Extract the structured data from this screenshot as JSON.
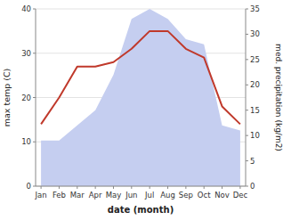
{
  "chart_data": {
    "type": "line",
    "categories": [
      "Jan",
      "Feb",
      "Mar",
      "Apr",
      "May",
      "Jun",
      "Jul",
      "Aug",
      "Sep",
      "Oct",
      "Nov",
      "Dec"
    ],
    "xlabel": "date (month)",
    "ylabel": "max temp (C)",
    "y2label": "med. precipitation (kg/m2)",
    "series": [
      {
        "type": "area",
        "axis": "y2",
        "color": "#c5cef0",
        "values": [
          9,
          9,
          12,
          15,
          22,
          33,
          35,
          33,
          29,
          28,
          12,
          11
        ]
      },
      {
        "type": "line",
        "color": "#c0392b",
        "values": [
          14,
          20,
          27,
          27,
          28,
          31,
          35,
          35,
          31,
          29,
          18,
          14
        ]
      }
    ],
    "ylim": [
      0,
      40
    ],
    "yticks": [
      0,
      10,
      20,
      30,
      40
    ],
    "y2lim": [
      0,
      35
    ],
    "y2ticks": [
      0,
      5,
      10,
      15,
      20,
      25,
      30,
      35
    ],
    "grid": true
  }
}
